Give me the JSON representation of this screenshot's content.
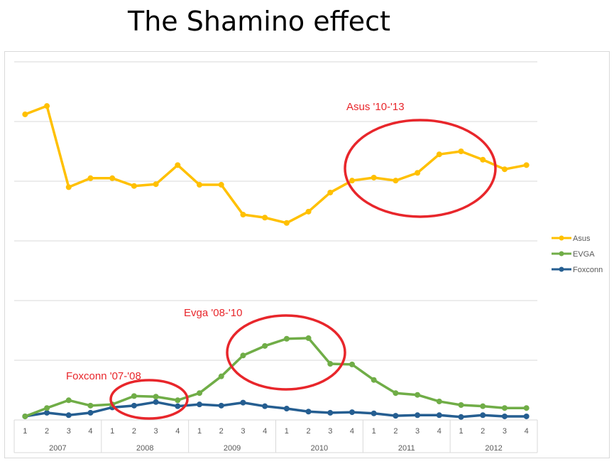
{
  "chart_data": {
    "type": "line",
    "title": "The Shamino effect",
    "xlabel": "",
    "ylabel": "",
    "ylim": [
      0,
      6
    ],
    "grid": true,
    "legend_position": "right",
    "categories": [
      "1",
      "2",
      "3",
      "4",
      "1",
      "2",
      "3",
      "4",
      "1",
      "2",
      "3",
      "4",
      "1",
      "2",
      "3",
      "4",
      "1",
      "2",
      "3",
      "4",
      "1",
      "2",
      "3",
      "4"
    ],
    "year_groups": [
      "2007",
      "2008",
      "2009",
      "2010",
      "2011",
      "2012"
    ],
    "series": [
      {
        "name": "Asus",
        "color": "#ffc000",
        "values": [
          5.12,
          5.26,
          3.9,
          4.05,
          4.05,
          3.92,
          3.95,
          4.27,
          3.94,
          3.94,
          3.44,
          3.39,
          3.3,
          3.49,
          3.81,
          4.01,
          4.06,
          4.01,
          4.14,
          4.45,
          4.5,
          4.36,
          4.2,
          4.27
        ]
      },
      {
        "name": "EVGA",
        "color": "#70ad47",
        "values": [
          0.06,
          0.2,
          0.33,
          0.24,
          0.26,
          0.4,
          0.39,
          0.33,
          0.45,
          0.73,
          1.08,
          1.24,
          1.36,
          1.37,
          0.94,
          0.93,
          0.67,
          0.45,
          0.42,
          0.31,
          0.25,
          0.23,
          0.2,
          0.2
        ]
      },
      {
        "name": "Foxconn",
        "color": "#255e91",
        "values": [
          0.06,
          0.12,
          0.08,
          0.12,
          0.21,
          0.24,
          0.3,
          0.23,
          0.26,
          0.24,
          0.29,
          0.23,
          0.19,
          0.14,
          0.12,
          0.13,
          0.11,
          0.07,
          0.08,
          0.08,
          0.05,
          0.08,
          0.06,
          0.06
        ]
      }
    ],
    "annotations": [
      {
        "text": "Asus '10-'13",
        "color": "#e8262b"
      },
      {
        "text": "Evga '08-'10",
        "color": "#e8262b"
      },
      {
        "text": "Foxconn '07-'08",
        "color": "#e8262b"
      }
    ]
  }
}
